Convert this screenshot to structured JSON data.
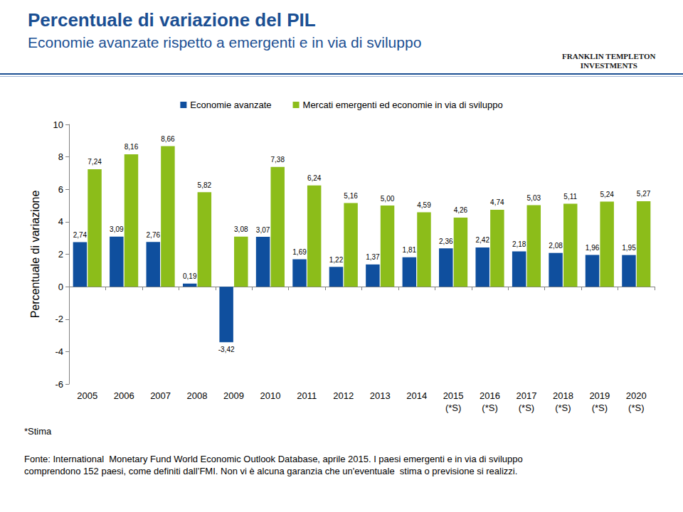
{
  "chart_data": {
    "type": "bar",
    "title": "Percentuale di variazione del PIL",
    "subtitle": "Economie avanzate rispetto a emergenti e in via di sviluppo",
    "ylabel": "Percentuale di variazione",
    "categories": [
      "2005",
      "2006",
      "2007",
      "2008",
      "2009",
      "2010",
      "2011",
      "2012",
      "2013",
      "2014",
      "2015\n(*S)",
      "2016\n(*S)",
      "2017\n(*S)",
      "2018\n(*S)",
      "2019\n(*S)",
      "2020\n(*S)"
    ],
    "series": [
      {
        "name": "Economie avanzate",
        "color": "#0F4F9E",
        "values": [
          2.74,
          3.09,
          2.76,
          0.19,
          -3.42,
          3.07,
          1.69,
          1.22,
          1.37,
          1.81,
          2.36,
          2.42,
          2.18,
          2.08,
          1.96,
          1.95
        ],
        "value_labels": [
          "2,74",
          "3,09",
          "2,76",
          "0,19",
          "-3,42",
          "3,07",
          "1,69",
          "1,22",
          "1,37",
          "1,81",
          "2,36",
          "2,42",
          "2,18",
          "2,08",
          "1,96",
          "1,95"
        ]
      },
      {
        "name": "Mercati emergenti ed economie in via di sviluppo",
        "color": "#8CBD1A",
        "values": [
          7.24,
          8.16,
          8.66,
          5.82,
          3.08,
          7.38,
          6.24,
          5.16,
          5.0,
          4.59,
          4.26,
          4.74,
          5.03,
          5.11,
          5.24,
          5.27
        ],
        "value_labels": [
          "7,24",
          "8,16",
          "8,66",
          "5,82",
          "3,08",
          "7,38",
          "6,24",
          "5,16",
          "5,00",
          "4,59",
          "4,26",
          "4,74",
          "5,03",
          "5,11",
          "5,24",
          "5,27"
        ]
      }
    ],
    "ylim": [
      -6,
      10
    ],
    "yticks": [
      -6,
      -4,
      -2,
      0,
      2,
      4,
      6,
      8,
      10
    ],
    "grid": false,
    "legend": "top",
    "data_labels": true,
    "annotations": [
      "FRANKLIN TEMPLETON\nINVESTMENTS",
      "*Stima",
      "Fonte: International  Monetary Fund World Economic Outlook Database, aprile 2015. I paesi emergenti e in via di sviluppo\ncomprendono 152 paesi, come definiti dall’FMI. Non vi è alcuna garanzia che un'eventuale  stima o previsione si realizzi."
    ]
  }
}
